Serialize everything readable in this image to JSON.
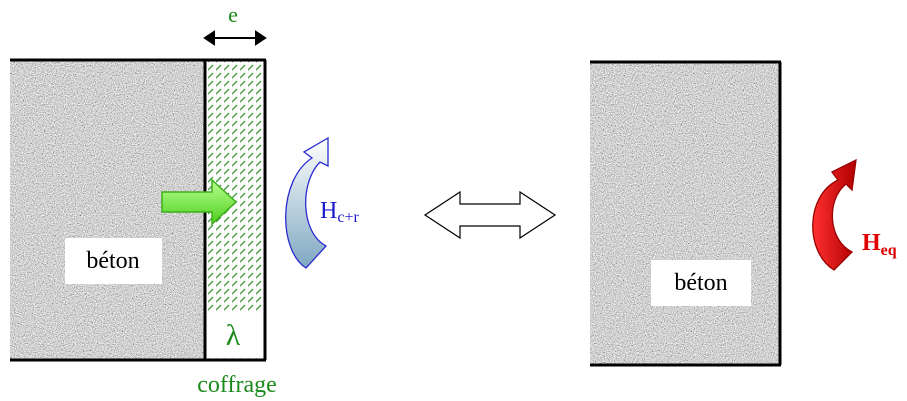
{
  "left": {
    "thickness_label": "e",
    "concrete_label": "béton",
    "conductivity_label": "λ",
    "formwork_label": "coffrage",
    "coefficient": {
      "symbol": "H",
      "subscript": "c+r"
    }
  },
  "right": {
    "concrete_label": "béton",
    "coefficient": {
      "symbol": "H",
      "subscript": "eq"
    }
  }
}
